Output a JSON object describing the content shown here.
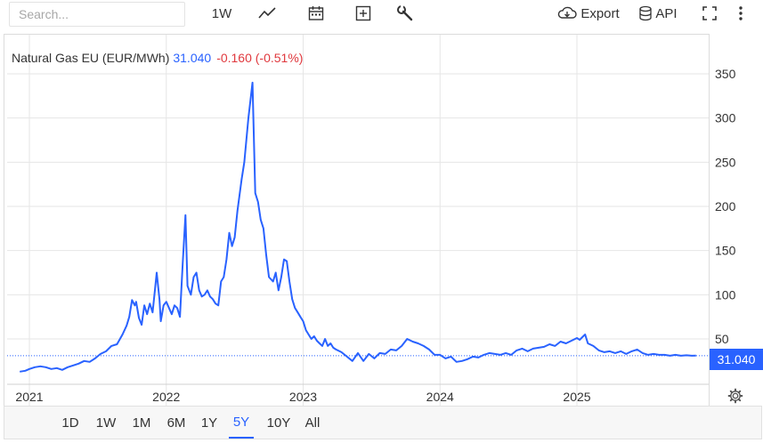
{
  "toolbar": {
    "search_placeholder": "Search...",
    "interval_label": "1W",
    "export_label": "Export",
    "api_label": "API"
  },
  "legend": {
    "name": "Natural Gas EU (EUR/MWh)",
    "price": "31.040",
    "change": "-0.160 (-0.51%)"
  },
  "price_tag": "31.040",
  "ranges": [
    "1D",
    "1W",
    "1M",
    "6M",
    "1Y",
    "5Y",
    "10Y",
    "All"
  ],
  "active_range": "5Y",
  "colors": {
    "line": "#2962ff",
    "negative": "#e0393e",
    "grid": "#e6e6e6"
  },
  "chart_data": {
    "type": "line",
    "series": [
      {
        "values": [
          [
            2020.93,
            13
          ],
          [
            2020.97,
            14
          ],
          [
            2021.0,
            16
          ],
          [
            2021.04,
            18
          ],
          [
            2021.08,
            19
          ],
          [
            2021.12,
            18
          ],
          [
            2021.16,
            16
          ],
          [
            2021.2,
            17
          ],
          [
            2021.24,
            15
          ],
          [
            2021.28,
            18
          ],
          [
            2021.32,
            20
          ],
          [
            2021.36,
            22
          ],
          [
            2021.4,
            25
          ],
          [
            2021.44,
            24
          ],
          [
            2021.48,
            28
          ],
          [
            2021.52,
            33
          ],
          [
            2021.56,
            36
          ],
          [
            2021.6,
            42
          ],
          [
            2021.64,
            44
          ],
          [
            2021.68,
            55
          ],
          [
            2021.71,
            65
          ],
          [
            2021.73,
            75
          ],
          [
            2021.75,
            94
          ],
          [
            2021.77,
            88
          ],
          [
            2021.78,
            92
          ],
          [
            2021.8,
            74
          ],
          [
            2021.82,
            66
          ],
          [
            2021.84,
            88
          ],
          [
            2021.86,
            78
          ],
          [
            2021.88,
            90
          ],
          [
            2021.9,
            80
          ],
          [
            2021.92,
            110
          ],
          [
            2021.93,
            125
          ],
          [
            2021.95,
            95
          ],
          [
            2021.96,
            70
          ],
          [
            2021.98,
            88
          ],
          [
            2022.0,
            92
          ],
          [
            2022.02,
            85
          ],
          [
            2022.04,
            78
          ],
          [
            2022.06,
            88
          ],
          [
            2022.08,
            85
          ],
          [
            2022.1,
            75
          ],
          [
            2022.12,
            135
          ],
          [
            2022.14,
            190
          ],
          [
            2022.155,
            110
          ],
          [
            2022.18,
            100
          ],
          [
            2022.2,
            120
          ],
          [
            2022.22,
            125
          ],
          [
            2022.24,
            105
          ],
          [
            2022.26,
            98
          ],
          [
            2022.28,
            100
          ],
          [
            2022.3,
            105
          ],
          [
            2022.32,
            98
          ],
          [
            2022.34,
            95
          ],
          [
            2022.36,
            90
          ],
          [
            2022.38,
            88
          ],
          [
            2022.4,
            115
          ],
          [
            2022.42,
            120
          ],
          [
            2022.44,
            140
          ],
          [
            2022.46,
            170
          ],
          [
            2022.48,
            155
          ],
          [
            2022.5,
            165
          ],
          [
            2022.52,
            195
          ],
          [
            2022.55,
            230
          ],
          [
            2022.57,
            250
          ],
          [
            2022.6,
            300
          ],
          [
            2022.63,
            340
          ],
          [
            2022.65,
            215
          ],
          [
            2022.67,
            205
          ],
          [
            2022.69,
            185
          ],
          [
            2022.71,
            175
          ],
          [
            2022.73,
            145
          ],
          [
            2022.75,
            120
          ],
          [
            2022.78,
            115
          ],
          [
            2022.8,
            125
          ],
          [
            2022.82,
            105
          ],
          [
            2022.84,
            120
          ],
          [
            2022.86,
            140
          ],
          [
            2022.88,
            138
          ],
          [
            2022.9,
            115
          ],
          [
            2022.92,
            95
          ],
          [
            2022.94,
            85
          ],
          [
            2022.96,
            80
          ],
          [
            2022.98,
            75
          ],
          [
            2023.0,
            70
          ],
          [
            2023.02,
            60
          ],
          [
            2023.04,
            55
          ],
          [
            2023.06,
            50
          ],
          [
            2023.08,
            53
          ],
          [
            2023.1,
            48
          ],
          [
            2023.12,
            45
          ],
          [
            2023.14,
            42
          ],
          [
            2023.16,
            50
          ],
          [
            2023.18,
            42
          ],
          [
            2023.2,
            45
          ],
          [
            2023.22,
            40
          ],
          [
            2023.24,
            38
          ],
          [
            2023.28,
            35
          ],
          [
            2023.32,
            30
          ],
          [
            2023.36,
            25
          ],
          [
            2023.4,
            34
          ],
          [
            2023.44,
            25
          ],
          [
            2023.48,
            33
          ],
          [
            2023.52,
            28
          ],
          [
            2023.56,
            34
          ],
          [
            2023.6,
            33
          ],
          [
            2023.64,
            38
          ],
          [
            2023.68,
            37
          ],
          [
            2023.72,
            42
          ],
          [
            2023.76,
            50
          ],
          [
            2023.8,
            47
          ],
          [
            2023.84,
            45
          ],
          [
            2023.88,
            42
          ],
          [
            2023.92,
            38
          ],
          [
            2023.96,
            32
          ],
          [
            2024.0,
            32
          ],
          [
            2024.04,
            28
          ],
          [
            2024.08,
            30
          ],
          [
            2024.12,
            24
          ],
          [
            2024.16,
            25
          ],
          [
            2024.2,
            27
          ],
          [
            2024.24,
            30
          ],
          [
            2024.28,
            29
          ],
          [
            2024.32,
            32
          ],
          [
            2024.36,
            34
          ],
          [
            2024.4,
            33
          ],
          [
            2024.44,
            32
          ],
          [
            2024.48,
            34
          ],
          [
            2024.52,
            32
          ],
          [
            2024.56,
            37
          ],
          [
            2024.6,
            39
          ],
          [
            2024.64,
            36
          ],
          [
            2024.68,
            39
          ],
          [
            2024.72,
            40
          ],
          [
            2024.76,
            41
          ],
          [
            2024.8,
            44
          ],
          [
            2024.84,
            42
          ],
          [
            2024.88,
            47
          ],
          [
            2024.92,
            45
          ],
          [
            2024.96,
            48
          ],
          [
            2025.0,
            51
          ],
          [
            2025.02,
            49
          ],
          [
            2025.04,
            52
          ],
          [
            2025.06,
            55
          ],
          [
            2025.08,
            45
          ],
          [
            2025.12,
            42
          ],
          [
            2025.16,
            37
          ],
          [
            2025.2,
            35
          ],
          [
            2025.24,
            36
          ],
          [
            2025.28,
            34
          ],
          [
            2025.32,
            36
          ],
          [
            2025.36,
            33
          ],
          [
            2025.4,
            36
          ],
          [
            2025.44,
            38
          ],
          [
            2025.48,
            34
          ],
          [
            2025.52,
            32
          ],
          [
            2025.56,
            33
          ],
          [
            2025.6,
            32
          ],
          [
            2025.64,
            32
          ],
          [
            2025.68,
            31
          ],
          [
            2025.72,
            32
          ],
          [
            2025.76,
            31
          ],
          [
            2025.8,
            31.5
          ],
          [
            2025.84,
            31
          ],
          [
            2025.87,
            31.04
          ]
        ]
      }
    ],
    "x_ticks": [
      2021,
      2022,
      2023,
      2024,
      2025
    ],
    "y_ticks": [
      50,
      100,
      150,
      200,
      250,
      300,
      350
    ],
    "last_value": 31.04,
    "grid": true
  }
}
